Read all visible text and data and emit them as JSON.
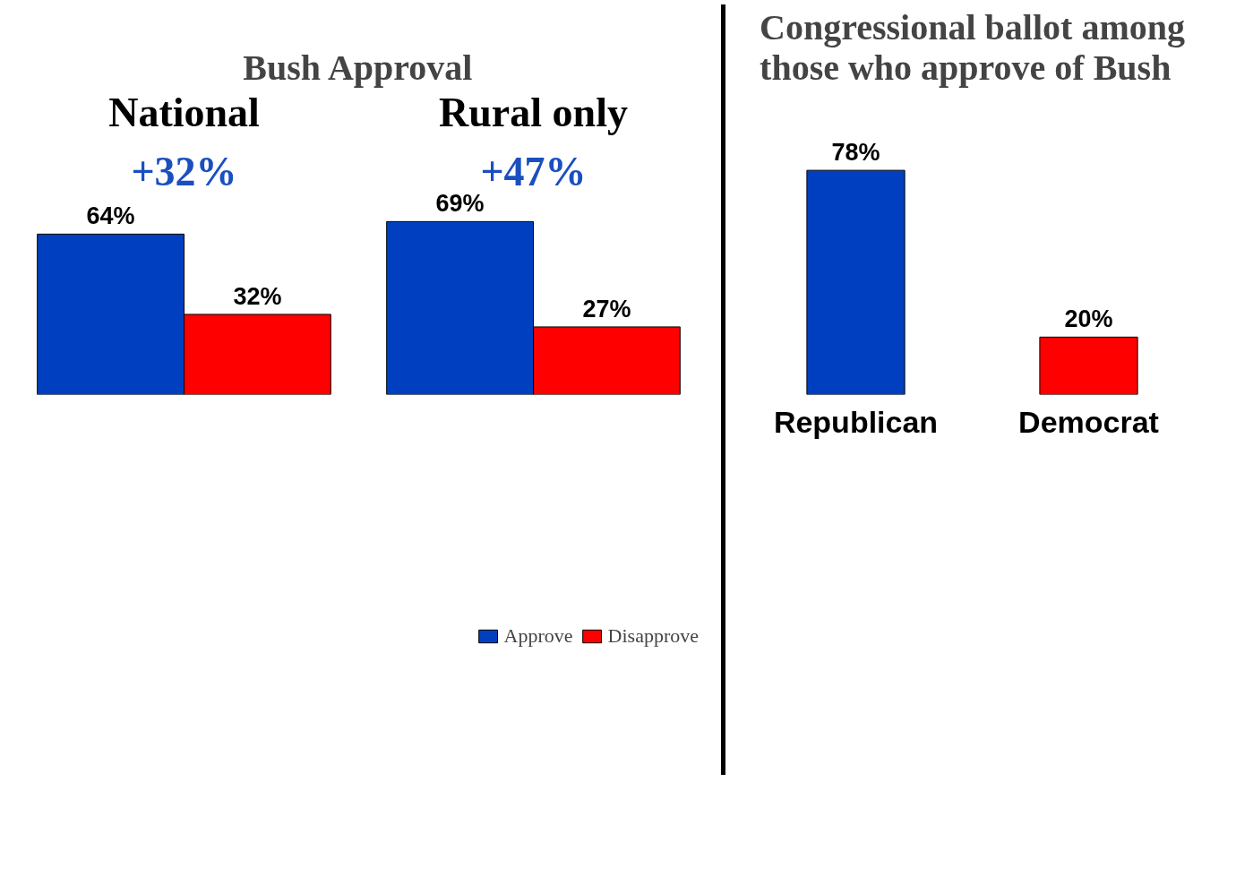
{
  "chart_data": [
    {
      "type": "bar",
      "title": "Bush Approval",
      "categories": [
        "National",
        "Rural only"
      ],
      "series": [
        {
          "name": "Approve",
          "color": "#0040c0",
          "values": [
            64,
            69
          ],
          "value_labels": [
            "64%",
            "69%"
          ]
        },
        {
          "name": "Disapprove",
          "color": "#ff0000",
          "values": [
            32,
            27
          ],
          "value_labels": [
            "32%",
            "27%"
          ]
        }
      ],
      "annotations": [
        "+32%",
        "+47%"
      ],
      "legend": "bottom",
      "grid": false
    },
    {
      "type": "bar",
      "title": "Congressional ballot among those who approve of Bush",
      "categories": [
        "Republican",
        "Democrat"
      ],
      "values": [
        78,
        20
      ],
      "value_labels": [
        "78%",
        "20%"
      ],
      "colors": [
        "#0040c0",
        "#ff0000"
      ],
      "grid": false
    }
  ]
}
